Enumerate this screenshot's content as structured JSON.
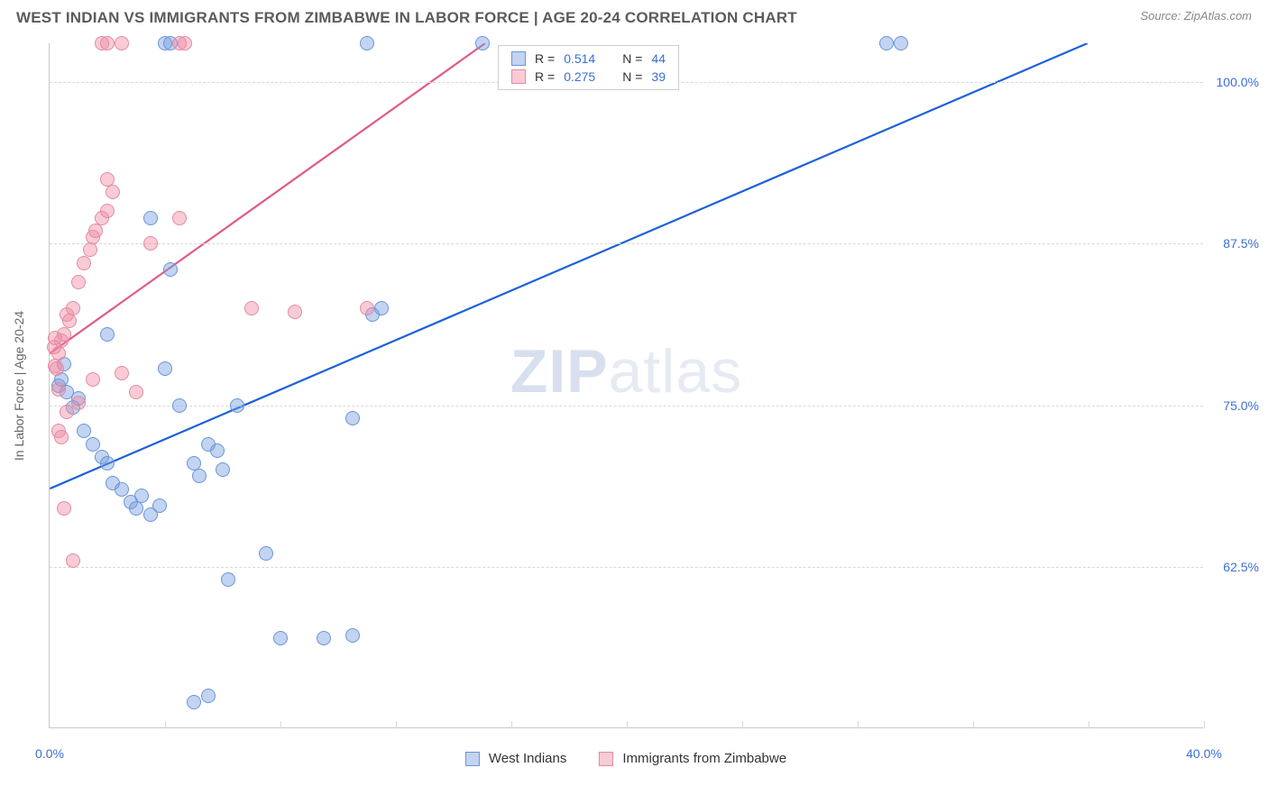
{
  "header": {
    "title": "WEST INDIAN VS IMMIGRANTS FROM ZIMBABWE IN LABOR FORCE | AGE 20-24 CORRELATION CHART",
    "source": "Source: ZipAtlas.com"
  },
  "chart": {
    "type": "scatter",
    "y_axis_title": "In Labor Force | Age 20-24",
    "xlim": [
      0,
      40
    ],
    "ylim": [
      50,
      103
    ],
    "x_ticks": [
      0,
      40
    ],
    "x_tick_labels": [
      "0.0%",
      "40.0%"
    ],
    "y_ticks": [
      62.5,
      75.0,
      87.5,
      100.0
    ],
    "y_tick_labels": [
      "62.5%",
      "75.0%",
      "87.5%",
      "100.0%"
    ],
    "x_grid_positions": [
      4,
      8,
      12,
      16,
      20,
      24,
      28,
      32,
      36,
      40
    ],
    "grid_color": "#d9d9d9",
    "background_color": "#ffffff",
    "point_radius": 8,
    "series": [
      {
        "name": "West Indians",
        "color_fill": "rgba(120,160,225,0.45)",
        "color_stroke": "#6a95d8",
        "R": "0.514",
        "N": "44",
        "trend": {
          "x1": 0,
          "y1": 68.5,
          "x2": 36,
          "y2": 103,
          "color": "#1c62d6",
          "width": 2.2
        },
        "points": [
          [
            0.3,
            76.5
          ],
          [
            0.4,
            77.0
          ],
          [
            0.5,
            78.2
          ],
          [
            0.6,
            76.0
          ],
          [
            0.8,
            74.8
          ],
          [
            1.0,
            75.5
          ],
          [
            1.2,
            73.0
          ],
          [
            1.5,
            72.0
          ],
          [
            1.8,
            71.0
          ],
          [
            2.0,
            70.5
          ],
          [
            2.2,
            69.0
          ],
          [
            2.5,
            68.5
          ],
          [
            2.8,
            67.5
          ],
          [
            3.0,
            67.0
          ],
          [
            3.2,
            68.0
          ],
          [
            3.5,
            66.5
          ],
          [
            3.8,
            67.2
          ],
          [
            4.0,
            77.8
          ],
          [
            4.2,
            85.5
          ],
          [
            4.5,
            75.0
          ],
          [
            5.0,
            70.5
          ],
          [
            5.2,
            69.5
          ],
          [
            5.5,
            72.0
          ],
          [
            5.8,
            71.5
          ],
          [
            6.0,
            70.0
          ],
          [
            6.5,
            75.0
          ],
          [
            2.0,
            80.5
          ],
          [
            3.5,
            89.5
          ],
          [
            4.0,
            103
          ],
          [
            4.2,
            103
          ],
          [
            11.0,
            103
          ],
          [
            15.0,
            103
          ],
          [
            29.0,
            103
          ],
          [
            29.5,
            103
          ],
          [
            6.2,
            61.5
          ],
          [
            7.5,
            63.5
          ],
          [
            5.0,
            52.0
          ],
          [
            5.5,
            52.5
          ],
          [
            8.0,
            57.0
          ],
          [
            9.5,
            57.0
          ],
          [
            10.5,
            57.2
          ],
          [
            10.5,
            74.0
          ],
          [
            11.2,
            82.0
          ],
          [
            11.5,
            82.5
          ]
        ]
      },
      {
        "name": "Immigrants from Zimbabwe",
        "color_fill": "rgba(240,140,165,0.45)",
        "color_stroke": "#e38aa3",
        "R": "0.275",
        "N": "39",
        "trend": {
          "x1": -0.3,
          "y1": 78.5,
          "x2": 15.1,
          "y2": 103,
          "color": "#e05b86",
          "width": 2.2
        },
        "points": [
          [
            0.2,
            78.0
          ],
          [
            0.3,
            79.0
          ],
          [
            0.4,
            80.0
          ],
          [
            0.5,
            80.5
          ],
          [
            0.6,
            82.0
          ],
          [
            0.7,
            81.5
          ],
          [
            0.8,
            82.5
          ],
          [
            1.0,
            84.5
          ],
          [
            1.2,
            86.0
          ],
          [
            1.4,
            87.0
          ],
          [
            1.5,
            88.0
          ],
          [
            1.6,
            88.5
          ],
          [
            1.8,
            89.5
          ],
          [
            2.0,
            90.0
          ],
          [
            2.2,
            91.5
          ],
          [
            0.3,
            73.0
          ],
          [
            0.4,
            72.5
          ],
          [
            0.5,
            67.0
          ],
          [
            0.8,
            63.0
          ],
          [
            1.5,
            77.0
          ],
          [
            2.5,
            77.5
          ],
          [
            3.0,
            76.0
          ],
          [
            3.5,
            87.5
          ],
          [
            1.8,
            103
          ],
          [
            2.0,
            103
          ],
          [
            2.5,
            103
          ],
          [
            4.5,
            103
          ],
          [
            4.7,
            103
          ],
          [
            0.15,
            79.5
          ],
          [
            0.2,
            80.2
          ],
          [
            0.25,
            77.8
          ],
          [
            0.3,
            76.2
          ],
          [
            4.5,
            89.5
          ],
          [
            7.0,
            82.5
          ],
          [
            8.5,
            82.2
          ],
          [
            11.0,
            82.5
          ],
          [
            2.0,
            92.5
          ],
          [
            0.6,
            74.5
          ],
          [
            1.0,
            75.2
          ]
        ]
      }
    ],
    "stats_legend": {
      "rows": [
        {
          "swatch_fill": "rgba(120,160,225,0.45)",
          "swatch_border": "#6a95d8",
          "R_label": "R =",
          "R": "0.514",
          "N_label": "N =",
          "N": "44"
        },
        {
          "swatch_fill": "rgba(240,140,165,0.45)",
          "swatch_border": "#e38aa3",
          "R_label": "R =",
          "R": "0.275",
          "N_label": "N =",
          "N": "39"
        }
      ]
    },
    "bottom_legend": [
      {
        "swatch_fill": "rgba(120,160,225,0.45)",
        "swatch_border": "#6a95d8",
        "label": "West Indians"
      },
      {
        "swatch_fill": "rgba(240,140,165,0.45)",
        "swatch_border": "#e38aa3",
        "label": "Immigrants from Zimbabwe"
      }
    ],
    "watermark": {
      "part1": "ZIP",
      "part2": "atlas"
    }
  }
}
